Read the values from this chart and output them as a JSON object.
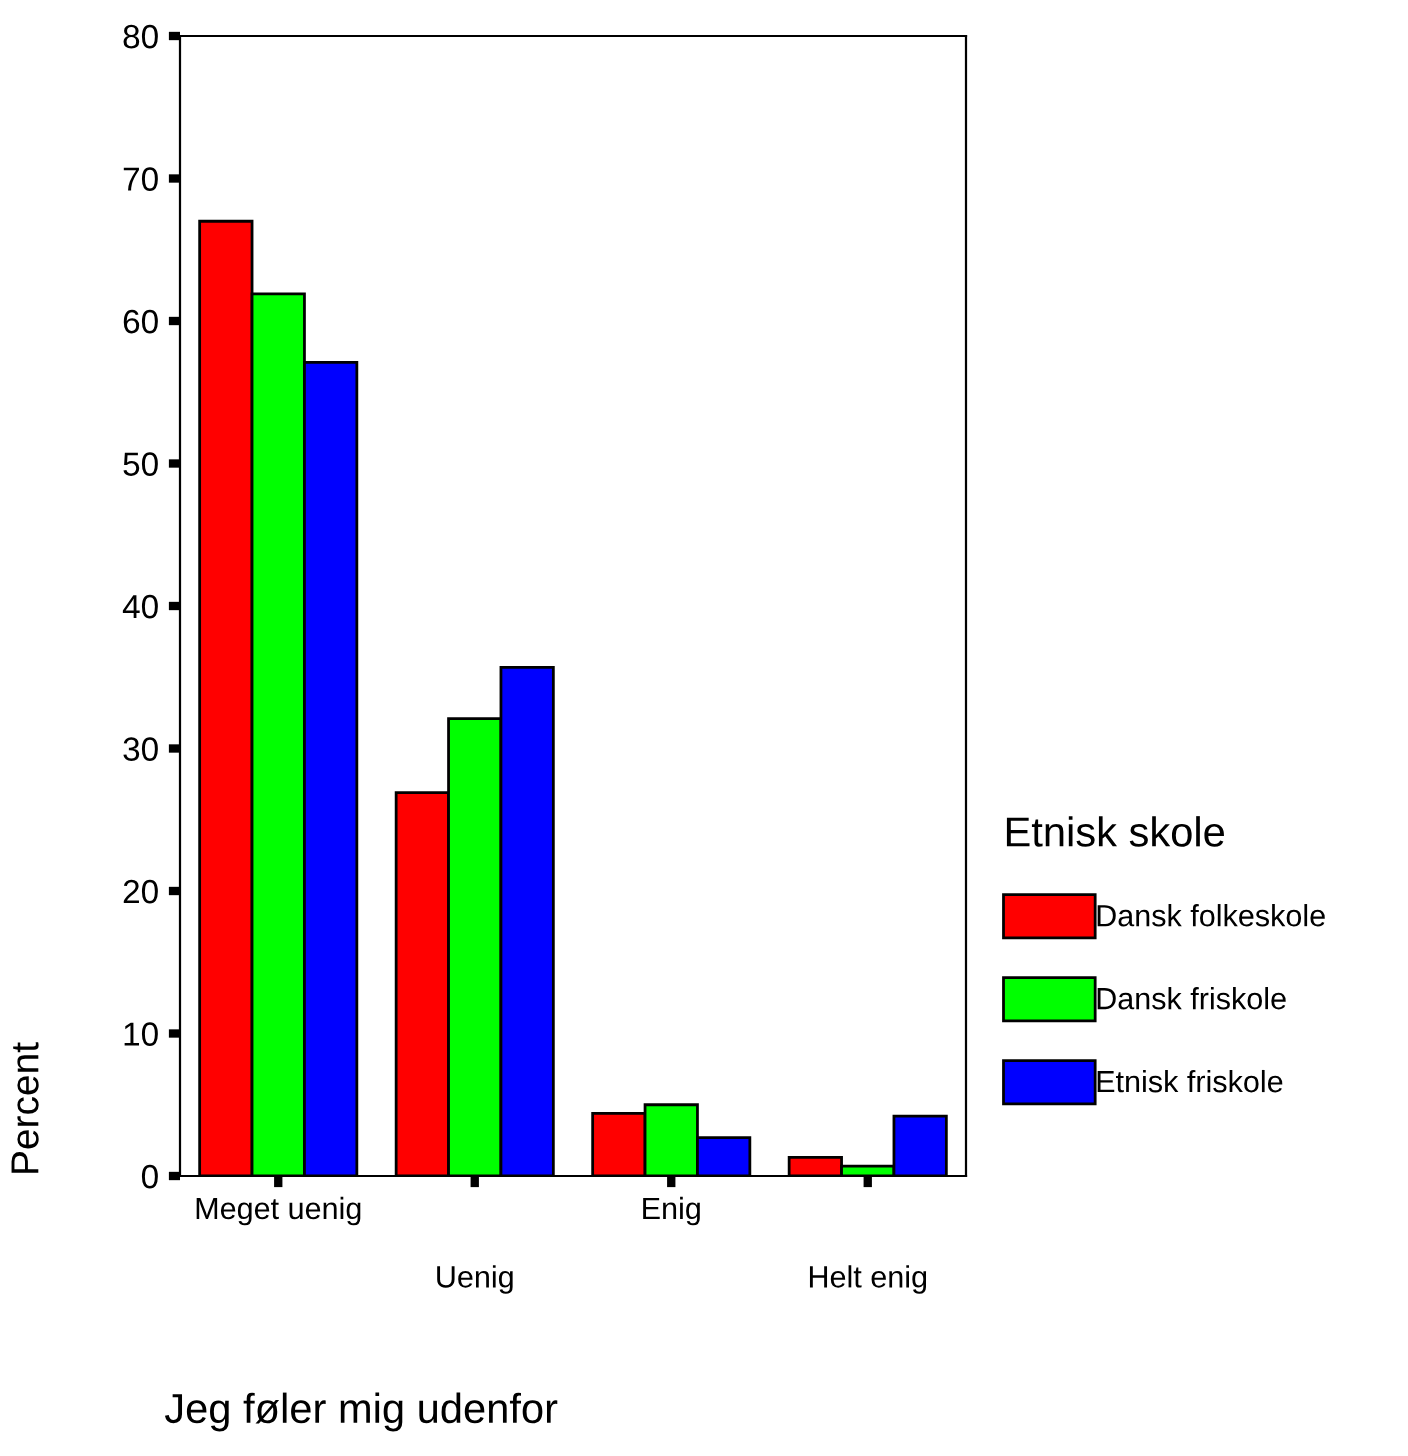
{
  "chart_data": {
    "type": "bar",
    "xlabel": "Jeg føler mig udenfor",
    "ylabel": "Percent",
    "legend_title": "Etnisk skole",
    "legend": "right",
    "categories": [
      "Meget uenig",
      "Uenig",
      "Enig",
      "Helt enig"
    ],
    "series": [
      {
        "name": "Dansk folkeskole",
        "color": "#ff0000",
        "values": [
          67.0,
          26.9,
          4.4,
          1.3
        ]
      },
      {
        "name": "Dansk friskole",
        "color": "#00ff00",
        "values": [
          61.9,
          32.1,
          5.0,
          0.7
        ]
      },
      {
        "name": "Etnisk friskole",
        "color": "#0000ff",
        "values": [
          57.1,
          35.7,
          2.7,
          4.2
        ]
      }
    ],
    "ylim": [
      0,
      80
    ],
    "yticks": [
      0,
      10,
      20,
      30,
      40,
      50,
      60,
      70,
      80
    ],
    "grid": false
  }
}
